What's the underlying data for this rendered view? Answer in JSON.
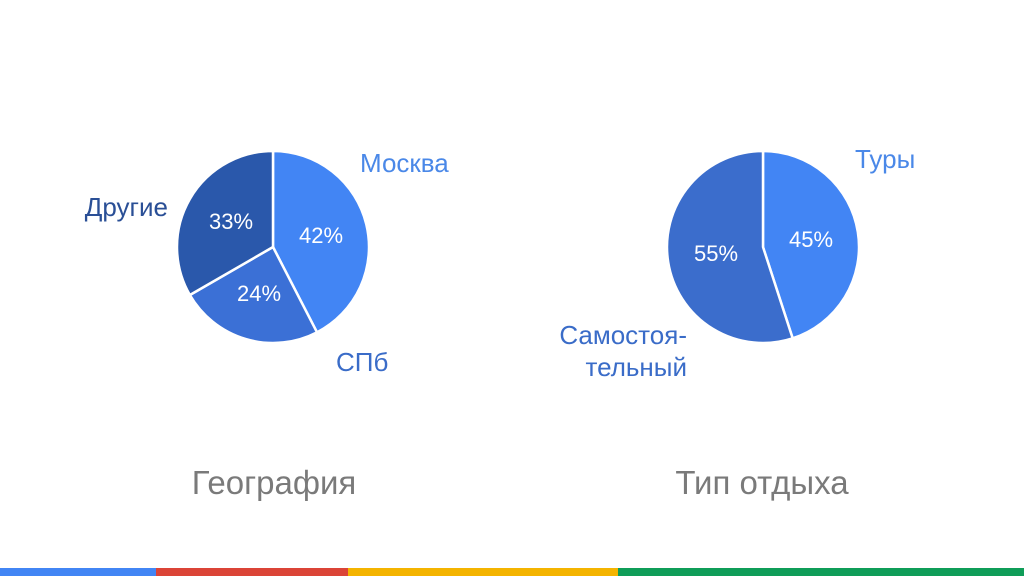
{
  "chart_data": [
    {
      "type": "pie",
      "title": "География",
      "slices": [
        {
          "label": "Москва",
          "value": 42,
          "display": "42%",
          "color": "#4285f4",
          "label_color": "#4a88e8"
        },
        {
          "label": "СПб",
          "value": 24,
          "display": "24%",
          "color": "#3b70d6",
          "label_color": "#3a6cc8"
        },
        {
          "label": "Другие",
          "value": 33,
          "display": "33%",
          "color": "#2a58ab",
          "label_color": "#2a4f96"
        }
      ]
    },
    {
      "type": "pie",
      "title": "Тип отдыха",
      "slices": [
        {
          "label": "Туры",
          "value": 45,
          "display": "45%",
          "color": "#4285f4",
          "label_color": "#4a88e8"
        },
        {
          "label": "Самостоя-\nтельный",
          "value": 55,
          "display": "55%",
          "color": "#3b6dcc",
          "label_color": "#3a6cc8"
        }
      ]
    }
  ],
  "bottom_bar": {
    "colors": [
      "#4285f4",
      "#db4437",
      "#f4b400",
      "#0f9d58"
    ],
    "fractions": [
      0.152,
      0.188,
      0.264,
      0.396
    ]
  }
}
